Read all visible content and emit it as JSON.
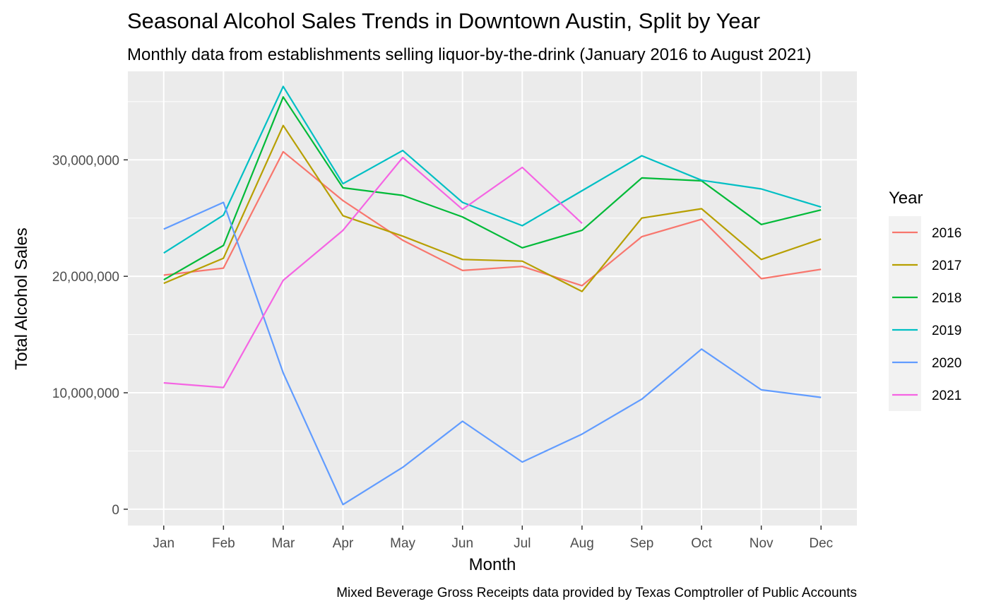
{
  "chart_data": {
    "type": "line",
    "title": "Seasonal Alcohol Sales Trends in Downtown Austin, Split by Year",
    "subtitle": "Monthly data from establishments selling liquor-by-the-drink (January 2016 to August 2021)",
    "xlabel": "Month",
    "ylabel": "Total Alcohol Sales",
    "caption": "Mixed Beverage Gross Receipts data provided by Texas Comptroller of Public Accounts",
    "categories": [
      "Jan",
      "Feb",
      "Mar",
      "Apr",
      "May",
      "Jun",
      "Jul",
      "Aug",
      "Sep",
      "Oct",
      "Nov",
      "Dec"
    ],
    "ylim": [
      -1400000,
      37600000
    ],
    "yticks": [
      0,
      10000000,
      20000000,
      30000000
    ],
    "ytick_labels": [
      "0",
      "10,000,000",
      "20,000,000",
      "30,000,000"
    ],
    "grid": true,
    "legend": {
      "title": "Year",
      "position": "right"
    },
    "series": [
      {
        "name": "2016",
        "color": "#F8766D",
        "values": [
          20100000,
          20700000,
          30700000,
          26500000,
          23100000,
          20500000,
          20850000,
          19200000,
          23400000,
          24900000,
          19800000,
          20600000
        ]
      },
      {
        "name": "2017",
        "color": "#B79F00",
        "values": [
          19400000,
          21550000,
          32950000,
          25200000,
          23450000,
          21450000,
          21300000,
          18700000,
          25000000,
          25800000,
          21450000,
          23200000
        ]
      },
      {
        "name": "2018",
        "color": "#00BA38",
        "values": [
          19700000,
          22650000,
          35400000,
          27600000,
          26950000,
          25100000,
          22450000,
          23950000,
          28450000,
          28200000,
          24450000,
          25700000
        ]
      },
      {
        "name": "2019",
        "color": "#00BFC4",
        "values": [
          22000000,
          25250000,
          36300000,
          27950000,
          30800000,
          26350000,
          24350000,
          27350000,
          30350000,
          28250000,
          27500000,
          25950000
        ]
      },
      {
        "name": "2020",
        "color": "#619CFF",
        "values": [
          24050000,
          26350000,
          11700000,
          400000,
          3600000,
          7550000,
          4050000,
          6450000,
          9450000,
          13750000,
          10250000,
          9600000
        ]
      },
      {
        "name": "2021",
        "color": "#F564E3",
        "values": [
          10850000,
          10450000,
          19650000,
          23950000,
          30200000,
          25750000,
          29350000,
          24550000,
          null,
          null,
          null,
          null
        ]
      }
    ]
  }
}
